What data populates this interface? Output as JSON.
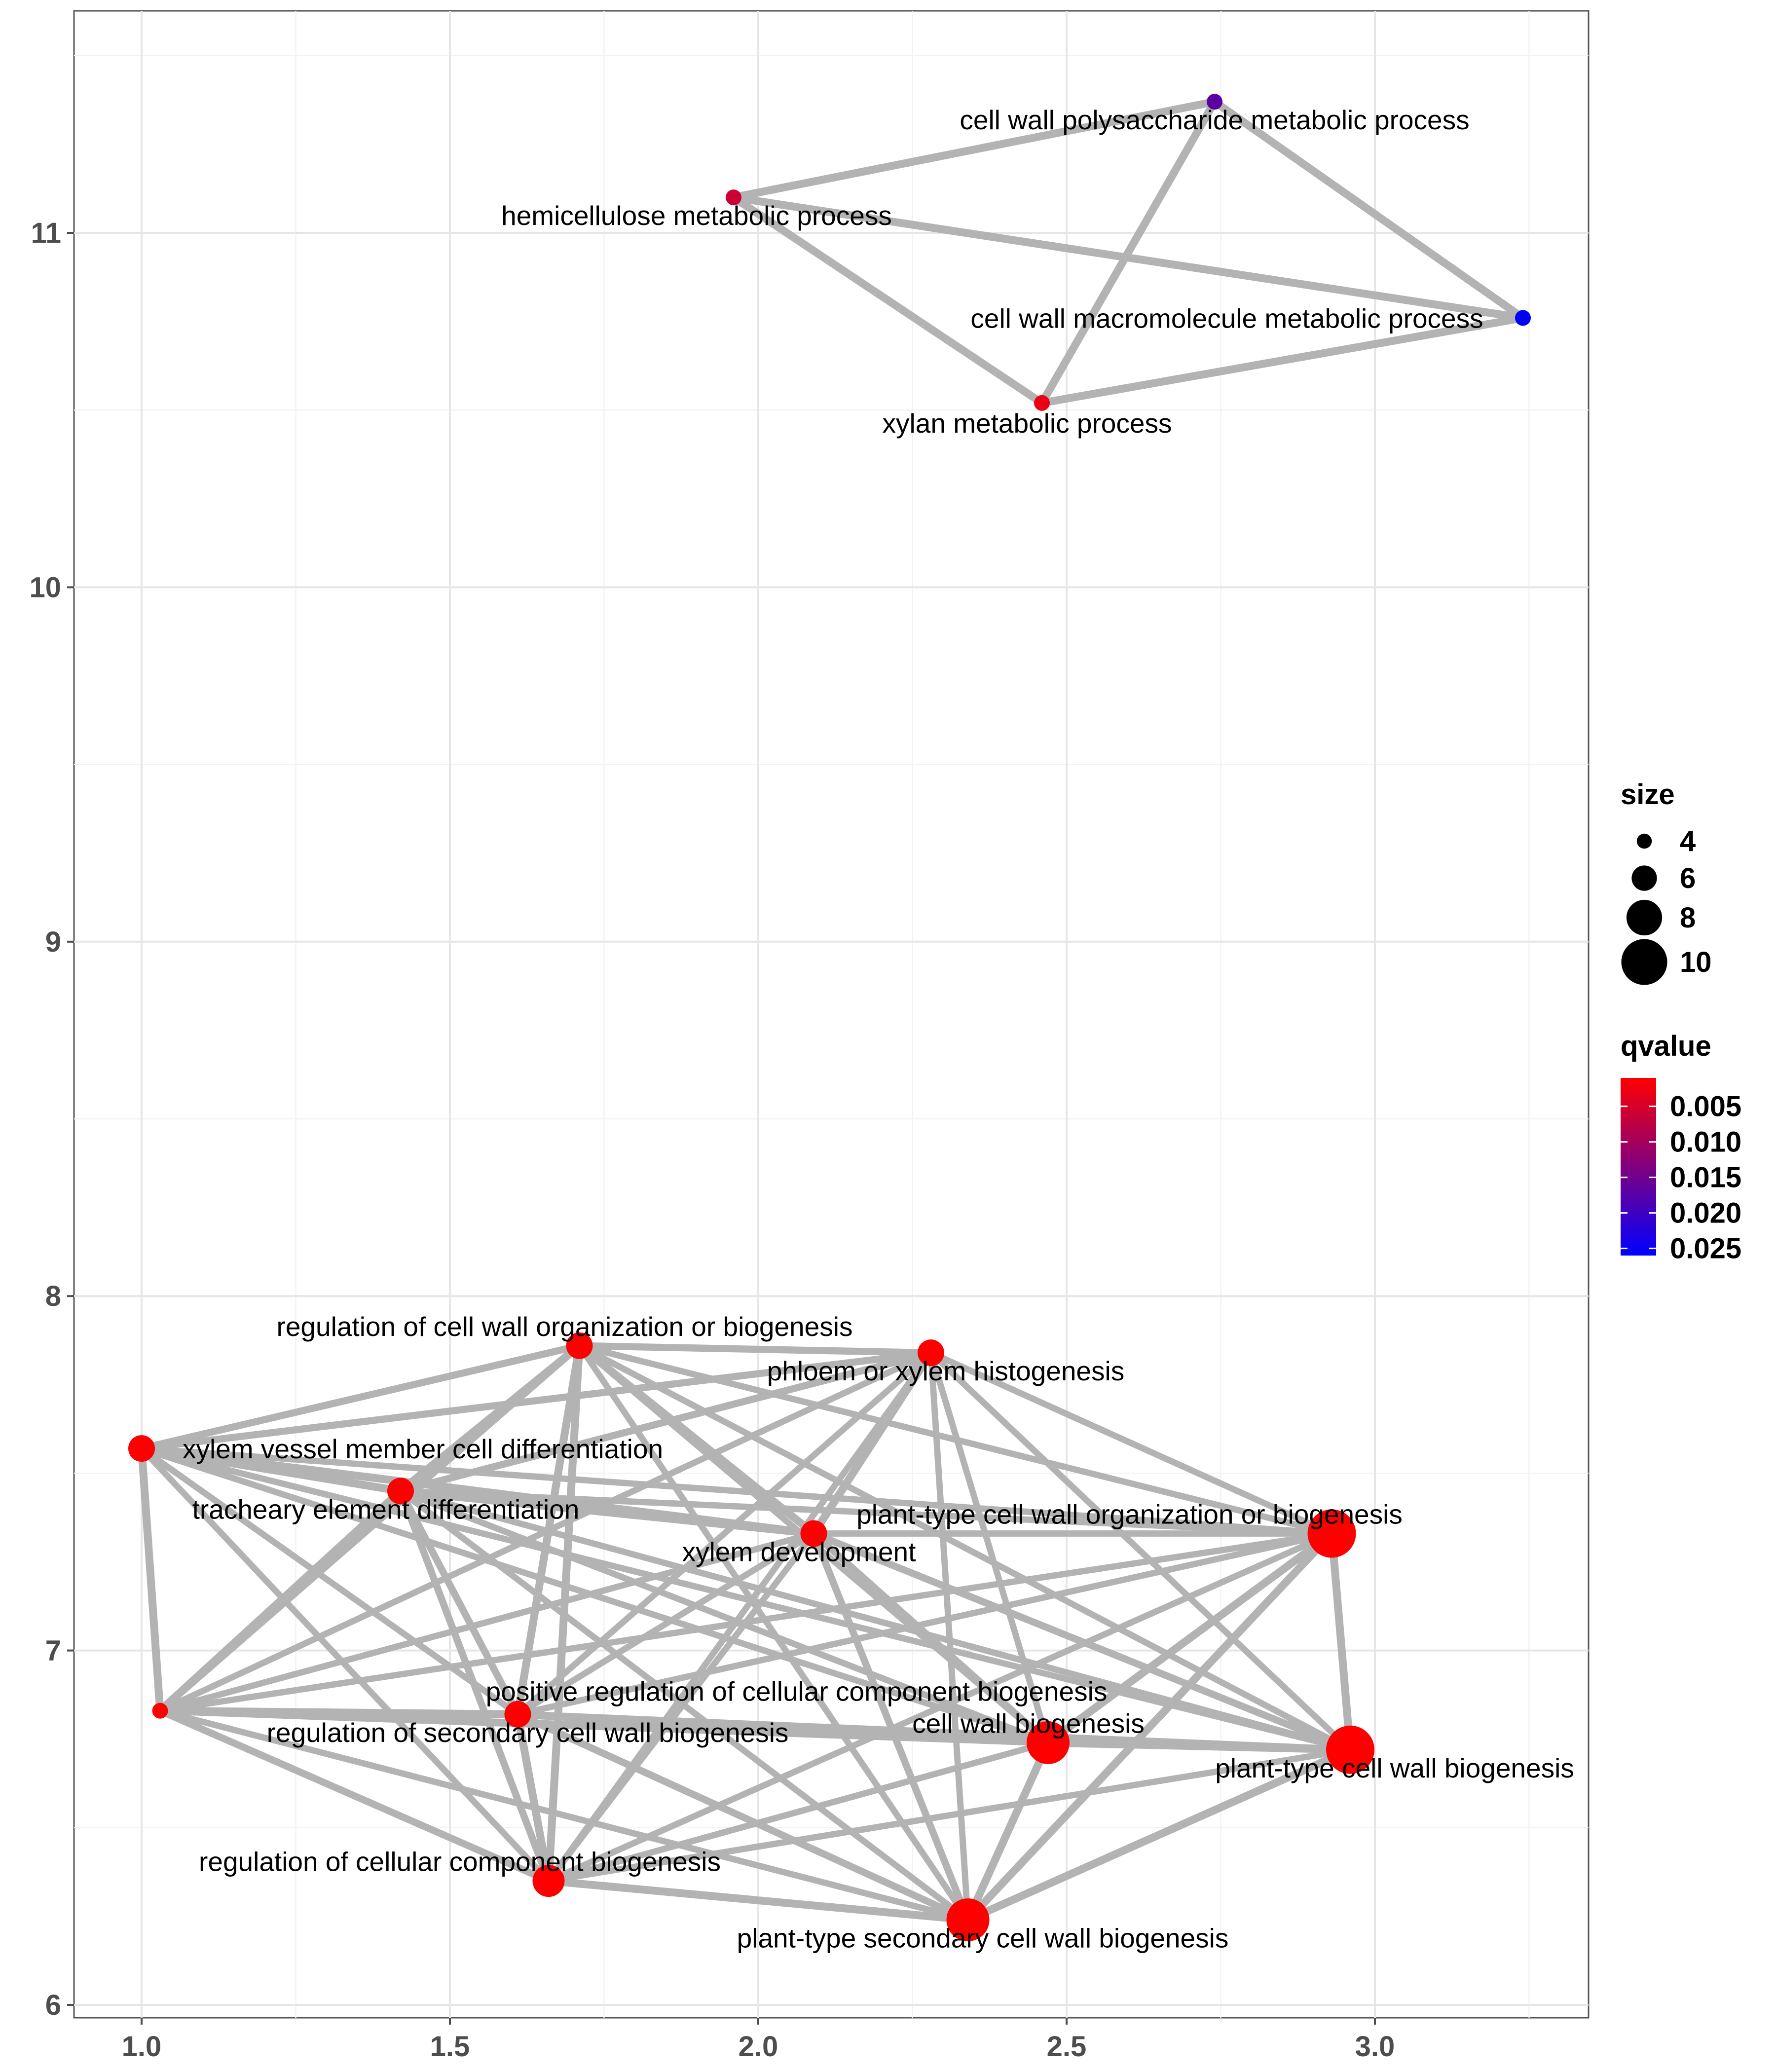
{
  "chart_data": {
    "type": "network",
    "title": "",
    "xlabel": "",
    "ylabel": "",
    "xlim": [
      0.9,
      3.35
    ],
    "ylim": [
      5.95,
      11.62
    ],
    "x_ticks": [
      1.0,
      1.5,
      2.0,
      2.5,
      3.0
    ],
    "x_tick_labels": [
      "1.0",
      "1.5",
      "2.0",
      "2.5",
      "3.0"
    ],
    "y_ticks": [
      6,
      7,
      8,
      9,
      10,
      11
    ],
    "y_tick_labels": [
      "6",
      "7",
      "8",
      "9",
      "10",
      "11"
    ],
    "grid": true,
    "legend_position": "right",
    "nodes": [
      {
        "id": 1,
        "label": "cell wall polysaccharide metabolic process",
        "x": 2.74,
        "y": 11.37,
        "size": 4,
        "qvalue": 0.017
      },
      {
        "id": 2,
        "label": "hemicellulose metabolic process",
        "x": 1.96,
        "y": 11.1,
        "size": 4,
        "qvalue": 0.006
      },
      {
        "id": 3,
        "label": "cell wall macromolecule metabolic process",
        "x": 3.24,
        "y": 10.76,
        "size": 4,
        "qvalue": 0.026
      },
      {
        "id": 4,
        "label": "xylan metabolic process",
        "x": 2.46,
        "y": 10.52,
        "size": 4,
        "qvalue": 0.003
      },
      {
        "id": 5,
        "label": "regulation of cell wall organization or biogenesis",
        "x": 1.71,
        "y": 7.86,
        "size": 6,
        "qvalue": 0.001
      },
      {
        "id": 6,
        "label": "phloem or xylem histogenesis",
        "x": 2.28,
        "y": 7.84,
        "size": 6,
        "qvalue": 0.001
      },
      {
        "id": 7,
        "label": "xylem vessel member cell differentiation",
        "x": 1.0,
        "y": 7.57,
        "size": 6,
        "qvalue": 0.001
      },
      {
        "id": 8,
        "label": "tracheary element differentiation",
        "x": 1.42,
        "y": 7.45,
        "size": 6,
        "qvalue": 0.001
      },
      {
        "id": 9,
        "label": "xylem development",
        "x": 2.09,
        "y": 7.33,
        "size": 6,
        "qvalue": 0.001
      },
      {
        "id": 10,
        "label": "plant-type cell wall organization or biogenesis",
        "x": 2.93,
        "y": 7.33,
        "size": 10,
        "qvalue": 0.001
      },
      {
        "id": 11,
        "label": "positive regulation of cellular component biogenesis",
        "x": 1.03,
        "y": 6.83,
        "size": 4,
        "qvalue": 0.001
      },
      {
        "id": 12,
        "label": "regulation of secondary cell wall biogenesis",
        "x": 1.61,
        "y": 6.82,
        "size": 6,
        "qvalue": 0.001
      },
      {
        "id": 13,
        "label": "cell wall biogenesis",
        "x": 2.47,
        "y": 6.74,
        "size": 9,
        "qvalue": 0.001
      },
      {
        "id": 14,
        "label": "plant-type cell wall biogenesis",
        "x": 2.96,
        "y": 6.72,
        "size": 10,
        "qvalue": 0.001
      },
      {
        "id": 15,
        "label": "regulation of cellular component biogenesis",
        "x": 1.66,
        "y": 6.35,
        "size": 7,
        "qvalue": 0.001
      },
      {
        "id": 16,
        "label": "plant-type secondary cell wall biogenesis",
        "x": 2.34,
        "y": 6.24,
        "size": 9,
        "qvalue": 0.001
      }
    ],
    "edges": [
      {
        "source": 1,
        "target": 2,
        "weight": 1
      },
      {
        "source": 1,
        "target": 3,
        "weight": 1
      },
      {
        "source": 1,
        "target": 4,
        "weight": 1
      },
      {
        "source": 2,
        "target": 3,
        "weight": 1
      },
      {
        "source": 2,
        "target": 4,
        "weight": 1
      },
      {
        "source": 3,
        "target": 4,
        "weight": 1
      },
      {
        "source": 5,
        "target": 6,
        "weight": 0.8
      },
      {
        "source": 5,
        "target": 7,
        "weight": 0.8
      },
      {
        "source": 5,
        "target": 8,
        "weight": 1
      },
      {
        "source": 5,
        "target": 9,
        "weight": 1
      },
      {
        "source": 5,
        "target": 10,
        "weight": 0.6
      },
      {
        "source": 5,
        "target": 11,
        "weight": 0.8
      },
      {
        "source": 5,
        "target": 12,
        "weight": 1
      },
      {
        "source": 5,
        "target": 13,
        "weight": 0.6
      },
      {
        "source": 5,
        "target": 14,
        "weight": 0.6
      },
      {
        "source": 5,
        "target": 15,
        "weight": 1
      },
      {
        "source": 5,
        "target": 16,
        "weight": 0.6
      },
      {
        "source": 6,
        "target": 7,
        "weight": 0.8
      },
      {
        "source": 6,
        "target": 8,
        "weight": 0.8
      },
      {
        "source": 6,
        "target": 9,
        "weight": 1
      },
      {
        "source": 6,
        "target": 10,
        "weight": 0.6
      },
      {
        "source": 6,
        "target": 11,
        "weight": 0.6
      },
      {
        "source": 6,
        "target": 12,
        "weight": 0.6
      },
      {
        "source": 6,
        "target": 13,
        "weight": 0.6
      },
      {
        "source": 6,
        "target": 14,
        "weight": 0.6
      },
      {
        "source": 6,
        "target": 15,
        "weight": 0.6
      },
      {
        "source": 6,
        "target": 16,
        "weight": 0.6
      },
      {
        "source": 7,
        "target": 8,
        "weight": 1
      },
      {
        "source": 7,
        "target": 9,
        "weight": 1
      },
      {
        "source": 7,
        "target": 10,
        "weight": 0.6
      },
      {
        "source": 7,
        "target": 11,
        "weight": 1
      },
      {
        "source": 7,
        "target": 12,
        "weight": 0.6
      },
      {
        "source": 7,
        "target": 13,
        "weight": 0.6
      },
      {
        "source": 7,
        "target": 14,
        "weight": 0.6
      },
      {
        "source": 7,
        "target": 15,
        "weight": 0.6
      },
      {
        "source": 8,
        "target": 9,
        "weight": 1
      },
      {
        "source": 8,
        "target": 10,
        "weight": 0.6
      },
      {
        "source": 8,
        "target": 11,
        "weight": 1
      },
      {
        "source": 8,
        "target": 12,
        "weight": 0.8
      },
      {
        "source": 8,
        "target": 13,
        "weight": 0.6
      },
      {
        "source": 8,
        "target": 14,
        "weight": 0.6
      },
      {
        "source": 8,
        "target": 15,
        "weight": 0.8
      },
      {
        "source": 8,
        "target": 16,
        "weight": 0.6
      },
      {
        "source": 9,
        "target": 10,
        "weight": 0.6
      },
      {
        "source": 9,
        "target": 11,
        "weight": 0.6
      },
      {
        "source": 9,
        "target": 12,
        "weight": 0.6
      },
      {
        "source": 9,
        "target": 13,
        "weight": 0.8
      },
      {
        "source": 9,
        "target": 14,
        "weight": 0.8
      },
      {
        "source": 9,
        "target": 15,
        "weight": 0.6
      },
      {
        "source": 9,
        "target": 16,
        "weight": 0.8
      },
      {
        "source": 10,
        "target": 11,
        "weight": 0.6
      },
      {
        "source": 10,
        "target": 12,
        "weight": 0.6
      },
      {
        "source": 10,
        "target": 13,
        "weight": 1
      },
      {
        "source": 10,
        "target": 14,
        "weight": 1
      },
      {
        "source": 10,
        "target": 15,
        "weight": 0.6
      },
      {
        "source": 10,
        "target": 16,
        "weight": 1
      },
      {
        "source": 11,
        "target": 12,
        "weight": 1
      },
      {
        "source": 11,
        "target": 13,
        "weight": 0.8
      },
      {
        "source": 11,
        "target": 14,
        "weight": 0.6
      },
      {
        "source": 11,
        "target": 15,
        "weight": 0.8
      },
      {
        "source": 11,
        "target": 16,
        "weight": 0.6
      },
      {
        "source": 12,
        "target": 13,
        "weight": 1
      },
      {
        "source": 12,
        "target": 14,
        "weight": 0.8
      },
      {
        "source": 12,
        "target": 15,
        "weight": 1
      },
      {
        "source": 12,
        "target": 16,
        "weight": 0.8
      },
      {
        "source": 13,
        "target": 14,
        "weight": 1
      },
      {
        "source": 13,
        "target": 15,
        "weight": 0.6
      },
      {
        "source": 13,
        "target": 16,
        "weight": 1
      },
      {
        "source": 14,
        "target": 15,
        "weight": 0.6
      },
      {
        "source": 14,
        "target": 16,
        "weight": 1
      },
      {
        "source": 15,
        "target": 16,
        "weight": 1
      }
    ],
    "legend_size": {
      "title": "size",
      "entries": [
        {
          "value": 4,
          "label": "4"
        },
        {
          "value": 6,
          "label": "6"
        },
        {
          "value": 8,
          "label": "8"
        },
        {
          "value": 10,
          "label": "10"
        }
      ]
    },
    "legend_color": {
      "title": "qvalue",
      "low_color": "#ff0000",
      "high_color": "#0000ff",
      "range": [
        0.001,
        0.026
      ],
      "breaks": [
        0.005,
        0.01,
        0.015,
        0.02,
        0.025
      ],
      "labels": [
        "0.005",
        "0.010",
        "0.015",
        "0.020",
        "0.025"
      ]
    },
    "colors": {
      "edge": "#b3b3b3",
      "grid_major": "#e6e6e6",
      "grid_minor": "#f2f2f2",
      "panel_border": "#555555",
      "tick_label": "#4d4d4d"
    }
  }
}
